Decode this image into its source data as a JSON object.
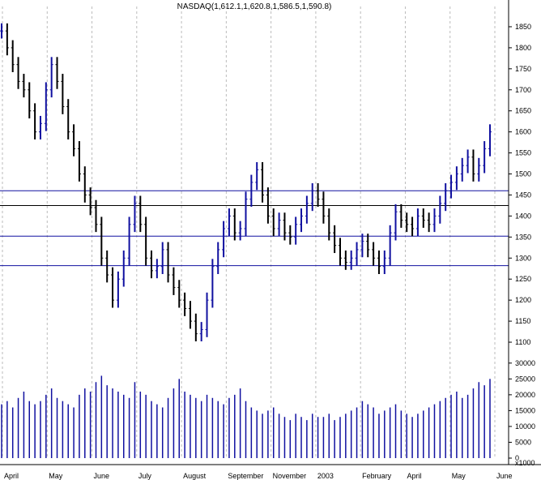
{
  "chart_data": {
    "type": "bar",
    "title": "NASDAQ(1,612.1,1,620.8,1,586.5,1,590.8)",
    "price_axis": {
      "ylim": [
        1075,
        1875
      ],
      "ticks": [
        1100,
        1150,
        1200,
        1250,
        1300,
        1350,
        1400,
        1450,
        1500,
        1550,
        1600,
        1650,
        1700,
        1750,
        1800,
        1850
      ]
    },
    "volume_axis": {
      "ylim": [
        0,
        32000
      ],
      "ticks": [
        0,
        5000,
        10000,
        15000,
        20000,
        25000,
        30000
      ],
      "unit_label": "x1000"
    },
    "x_labels": [
      "April",
      "May",
      "June",
      "July",
      "August",
      "September",
      "November",
      "2003",
      "February",
      "April",
      "May",
      "June"
    ],
    "horizontal_lines": [
      1460,
      1425,
      1352,
      1282
    ],
    "series": [
      {
        "values": [
          1840,
          1800,
          1760,
          1720,
          1700,
          1650,
          1600,
          1620,
          1700,
          1760,
          1720,
          1660,
          1600,
          1560,
          1500,
          1450,
          1420,
          1380,
          1300,
          1260,
          1200,
          1250,
          1300,
          1380,
          1430,
          1380,
          1300,
          1270,
          1280,
          1320,
          1260,
          1230,
          1200,
          1180,
          1150,
          1120,
          1130,
          1200,
          1280,
          1320,
          1370,
          1400,
          1360,
          1370,
          1440,
          1480,
          1510,
          1450,
          1400,
          1370,
          1390,
          1360,
          1350,
          1380,
          1400,
          1430,
          1460,
          1440,
          1400,
          1360,
          1330,
          1300,
          1290,
          1300,
          1320,
          1340,
          1320,
          1300,
          1280,
          1300,
          1360,
          1410,
          1390,
          1380,
          1370,
          1400,
          1390,
          1380,
          1400,
          1430,
          1460,
          1480,
          1500,
          1520,
          1540,
          1500,
          1520,
          1560,
          1600
        ]
      }
    ],
    "volume": [
      17000,
      18000,
      16000,
      19000,
      21000,
      18000,
      17000,
      18000,
      20000,
      22000,
      19000,
      18000,
      17000,
      16000,
      20000,
      22000,
      21000,
      24000,
      26000,
      23000,
      22000,
      21000,
      20000,
      19000,
      24000,
      21000,
      20000,
      18000,
      17000,
      16000,
      19000,
      22000,
      25000,
      21000,
      20000,
      19000,
      18000,
      20000,
      19000,
      18000,
      17000,
      19000,
      20000,
      22000,
      18000,
      16000,
      15000,
      14000,
      15000,
      16000,
      14000,
      13000,
      12000,
      14000,
      13000,
      12000,
      14000,
      13000,
      13000,
      14000,
      12000,
      13000,
      14000,
      15000,
      16000,
      18000,
      17000,
      16000,
      14000,
      15000,
      16000,
      17000,
      15000,
      14000,
      13000,
      14000,
      15000,
      16000,
      17000,
      18000,
      19000,
      20000,
      21000,
      19000,
      20000,
      22000,
      24000,
      23000,
      25000
    ]
  }
}
